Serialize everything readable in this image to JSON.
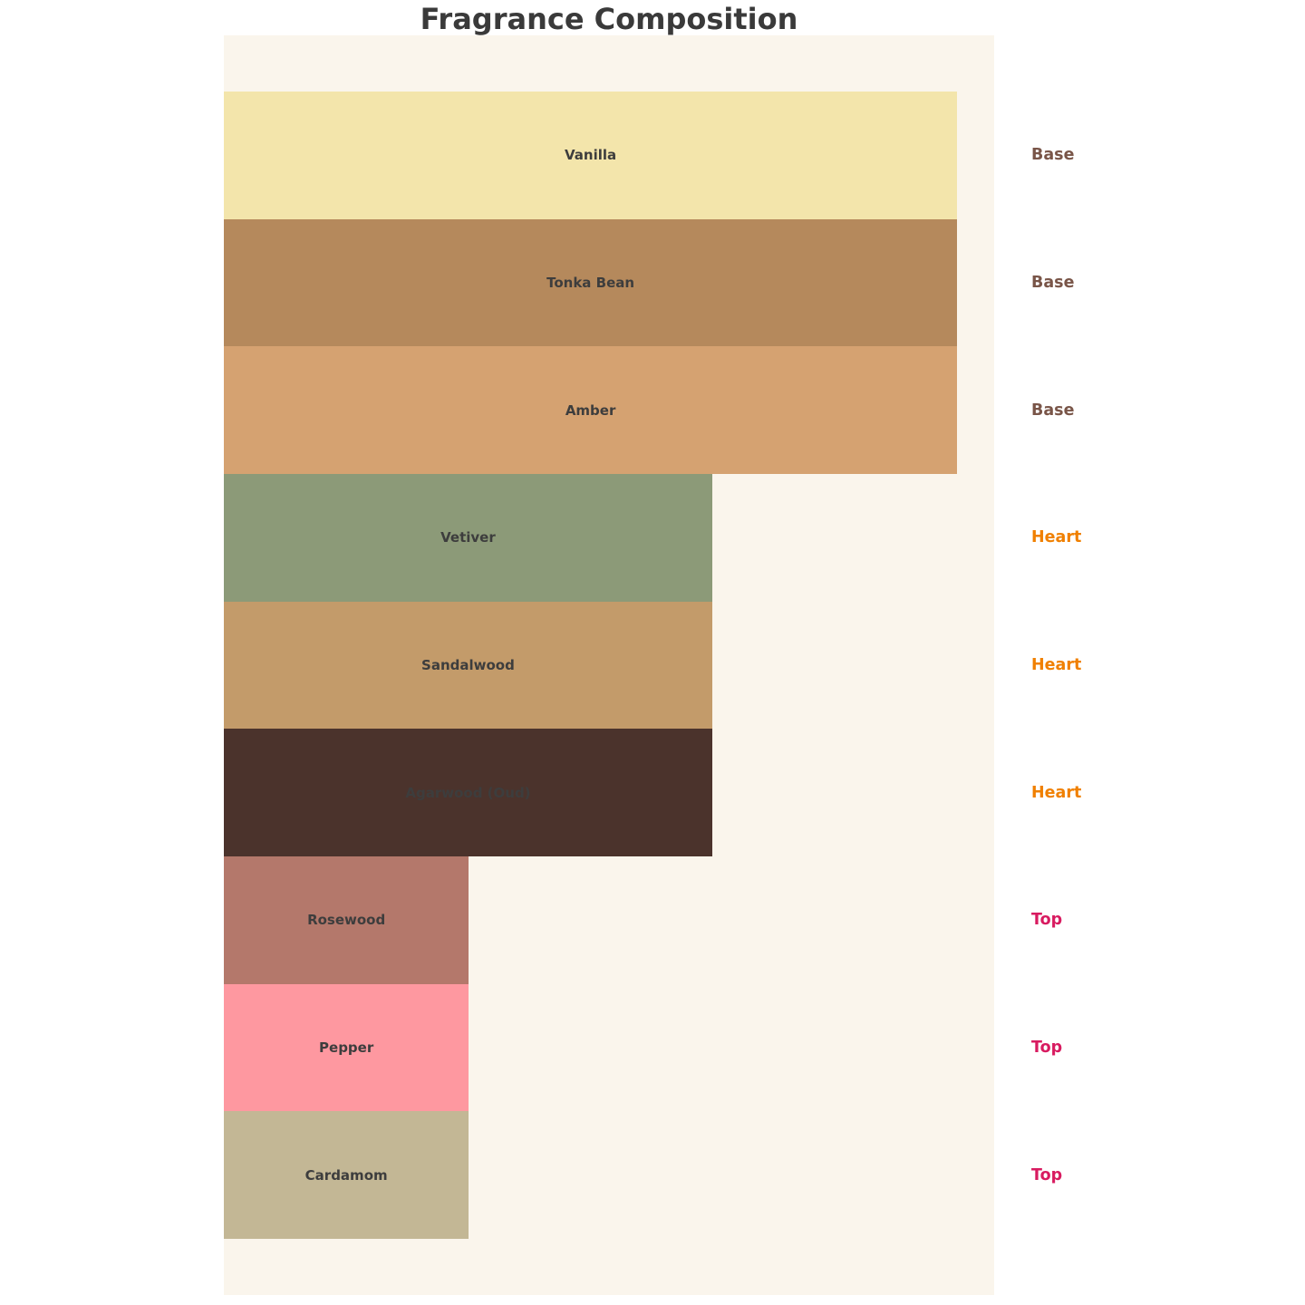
{
  "title": {
    "text": "Fragrance Composition",
    "color": "#3a3a3a"
  },
  "chart": {
    "background": "#faf5ec",
    "bar_label_color": "#3d3d3d"
  },
  "group_colors": {
    "base": "#795548",
    "heart": "#f08000",
    "top": "#d81b60"
  },
  "bars": [
    {
      "label": "Vanilla",
      "group": "Base",
      "color": "#f3e5ab",
      "width_pct": "95.2",
      "group_color": "#795548"
    },
    {
      "label": "Tonka Bean",
      "group": "Base",
      "color": "#b5895c",
      "width_pct": "95.2",
      "group_color": "#795548"
    },
    {
      "label": "Amber",
      "group": "Base",
      "color": "#d5a271",
      "width_pct": "95.2",
      "group_color": "#795548"
    },
    {
      "label": "Vetiver",
      "group": "Heart",
      "color": "#8c9a78",
      "width_pct": "63.4",
      "group_color": "#f08000"
    },
    {
      "label": "Sandalwood",
      "group": "Heart",
      "color": "#c39b6a",
      "width_pct": "63.4",
      "group_color": "#f08000"
    },
    {
      "label": "Agarwood (Oud)",
      "group": "Heart",
      "color": "#4b332c",
      "width_pct": "63.4",
      "group_color": "#f08000"
    },
    {
      "label": "Rosewood",
      "group": "Top",
      "color": "#b4786b",
      "width_pct": "31.8",
      "group_color": "#d81b60"
    },
    {
      "label": "Pepper",
      "group": "Top",
      "color": "#fe98a0",
      "width_pct": "31.8",
      "group_color": "#d81b60"
    },
    {
      "label": "Cardamom",
      "group": "Top",
      "color": "#c3b795",
      "width_pct": "31.8",
      "group_color": "#d81b60"
    }
  ],
  "chart_data": {
    "type": "bar",
    "orientation": "horizontal",
    "title": "Fragrance Composition",
    "categories": [
      "Vanilla",
      "Tonka Bean",
      "Amber",
      "Vetiver",
      "Sandalwood",
      "Agarwood (Oud)",
      "Rosewood",
      "Pepper",
      "Cardamom"
    ],
    "values": [
      3,
      3,
      3,
      2,
      2,
      2,
      1,
      1,
      1
    ],
    "groups": [
      "Base",
      "Base",
      "Base",
      "Heart",
      "Heart",
      "Heart",
      "Top",
      "Top",
      "Top"
    ],
    "bar_colors": [
      "#f3e5ab",
      "#b5895c",
      "#d5a271",
      "#8c9a78",
      "#c39b6a",
      "#4b332c",
      "#b4786b",
      "#fe98a0",
      "#c3b795"
    ],
    "group_label_colors": {
      "Base": "#795548",
      "Heart": "#f08000",
      "Top": "#d81b60"
    },
    "xlabel": "",
    "ylabel": "",
    "xlim": [
      0,
      3.15
    ],
    "grid": false,
    "axes_visible": false,
    "bar_gap": 0,
    "plot_background": "#faf5ec",
    "annotations": "group name (Base/Heart/Top) rendered to the right of the plot area, vertically centered on each bar"
  }
}
